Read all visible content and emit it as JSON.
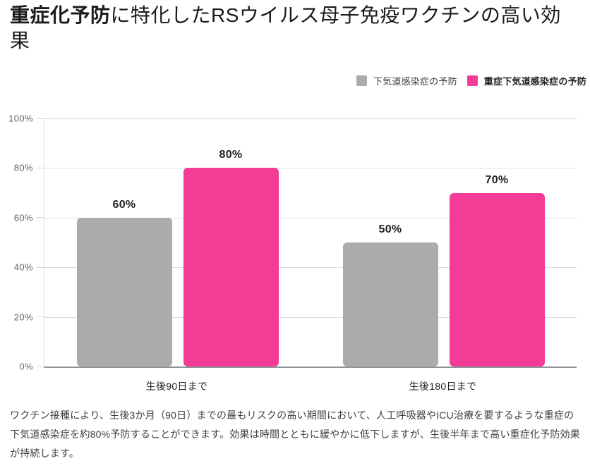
{
  "title": {
    "bold": "重症化予防",
    "rest": "に特化したRSウイルス母子免疫ワクチンの高い効果"
  },
  "legend": {
    "items": [
      {
        "label": "下気道感染症の予防",
        "color": "#ababab",
        "emphasis": false
      },
      {
        "label": "重症下気道感染症の予防",
        "color": "#f43b96",
        "emphasis": true
      }
    ]
  },
  "chart_data": {
    "type": "bar",
    "title": "",
    "categories": [
      "生後90日まで",
      "生後180日まで"
    ],
    "series": [
      {
        "name": "下気道感染症の予防",
        "color": "#ababab",
        "values": [
          60,
          50
        ]
      },
      {
        "name": "重症下気道感染症の予防",
        "color": "#f43b96",
        "values": [
          80,
          70
        ]
      }
    ],
    "value_label_suffix": "%",
    "ylim": [
      0,
      100
    ],
    "yticks": [
      {
        "label": "100%",
        "value": 100
      },
      {
        "label": "80%",
        "value": 80
      },
      {
        "label": "60%",
        "value": 60
      },
      {
        "label": "40%",
        "value": 40
      },
      {
        "label": "20%",
        "value": 20
      },
      {
        "label": "0%",
        "value": 0
      }
    ],
    "grid": true,
    "legend_position": "top-right"
  },
  "footer": {
    "text": "ワクチン接種により、生後3か月（90日）までの最もリスクの高い期間において、人工呼吸器やICU治療を要するような重症の下気道感染症を約80%予防することができます。効果は時間とともに緩やかに低下しますが、生後半年まで高い重症化予防効果が持続します。"
  }
}
